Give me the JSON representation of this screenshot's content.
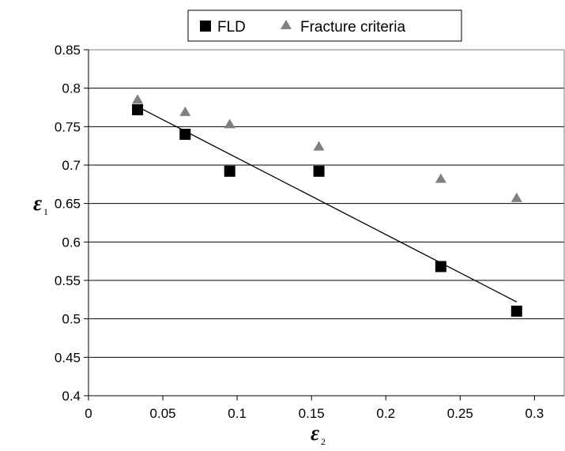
{
  "chart_data": {
    "type": "scatter",
    "title": "",
    "xlabel": "ε₂",
    "ylabel": "ε₁",
    "xlabel_symbol": "ε",
    "xlabel_subscript": "2",
    "ylabel_symbol": "ε",
    "ylabel_subscript": "1",
    "xlim": [
      0,
      0.32
    ],
    "ylim": [
      0.4,
      0.85
    ],
    "xticks": [
      "0",
      "0.05",
      "0.1",
      "0.15",
      "0.2",
      "0.25",
      "0.3"
    ],
    "yticks": [
      "0.4",
      "0.45",
      "0.5",
      "0.55",
      "0.6",
      "0.65",
      "0.7",
      "0.75",
      "0.8",
      "0.85"
    ],
    "grid": "horizontal",
    "legend_position": "top",
    "series": [
      {
        "name": "FLD",
        "marker": "square",
        "color": "#000000",
        "points": [
          {
            "x": 0.033,
            "y": 0.772
          },
          {
            "x": 0.065,
            "y": 0.74
          },
          {
            "x": 0.095,
            "y": 0.692
          },
          {
            "x": 0.155,
            "y": 0.692
          },
          {
            "x": 0.237,
            "y": 0.568
          },
          {
            "x": 0.288,
            "y": 0.51
          }
        ]
      },
      {
        "name": "Fracture criteria",
        "marker": "triangle",
        "color": "#808080",
        "points": [
          {
            "x": 0.033,
            "y": 0.785
          },
          {
            "x": 0.065,
            "y": 0.769
          },
          {
            "x": 0.095,
            "y": 0.753
          },
          {
            "x": 0.155,
            "y": 0.724
          },
          {
            "x": 0.237,
            "y": 0.682
          },
          {
            "x": 0.288,
            "y": 0.657
          }
        ]
      }
    ],
    "trendline": {
      "series": "FLD",
      "type": "linear",
      "color": "#000000",
      "start": {
        "x": 0.033,
        "y": 0.776
      },
      "end": {
        "x": 0.288,
        "y": 0.522
      }
    }
  }
}
